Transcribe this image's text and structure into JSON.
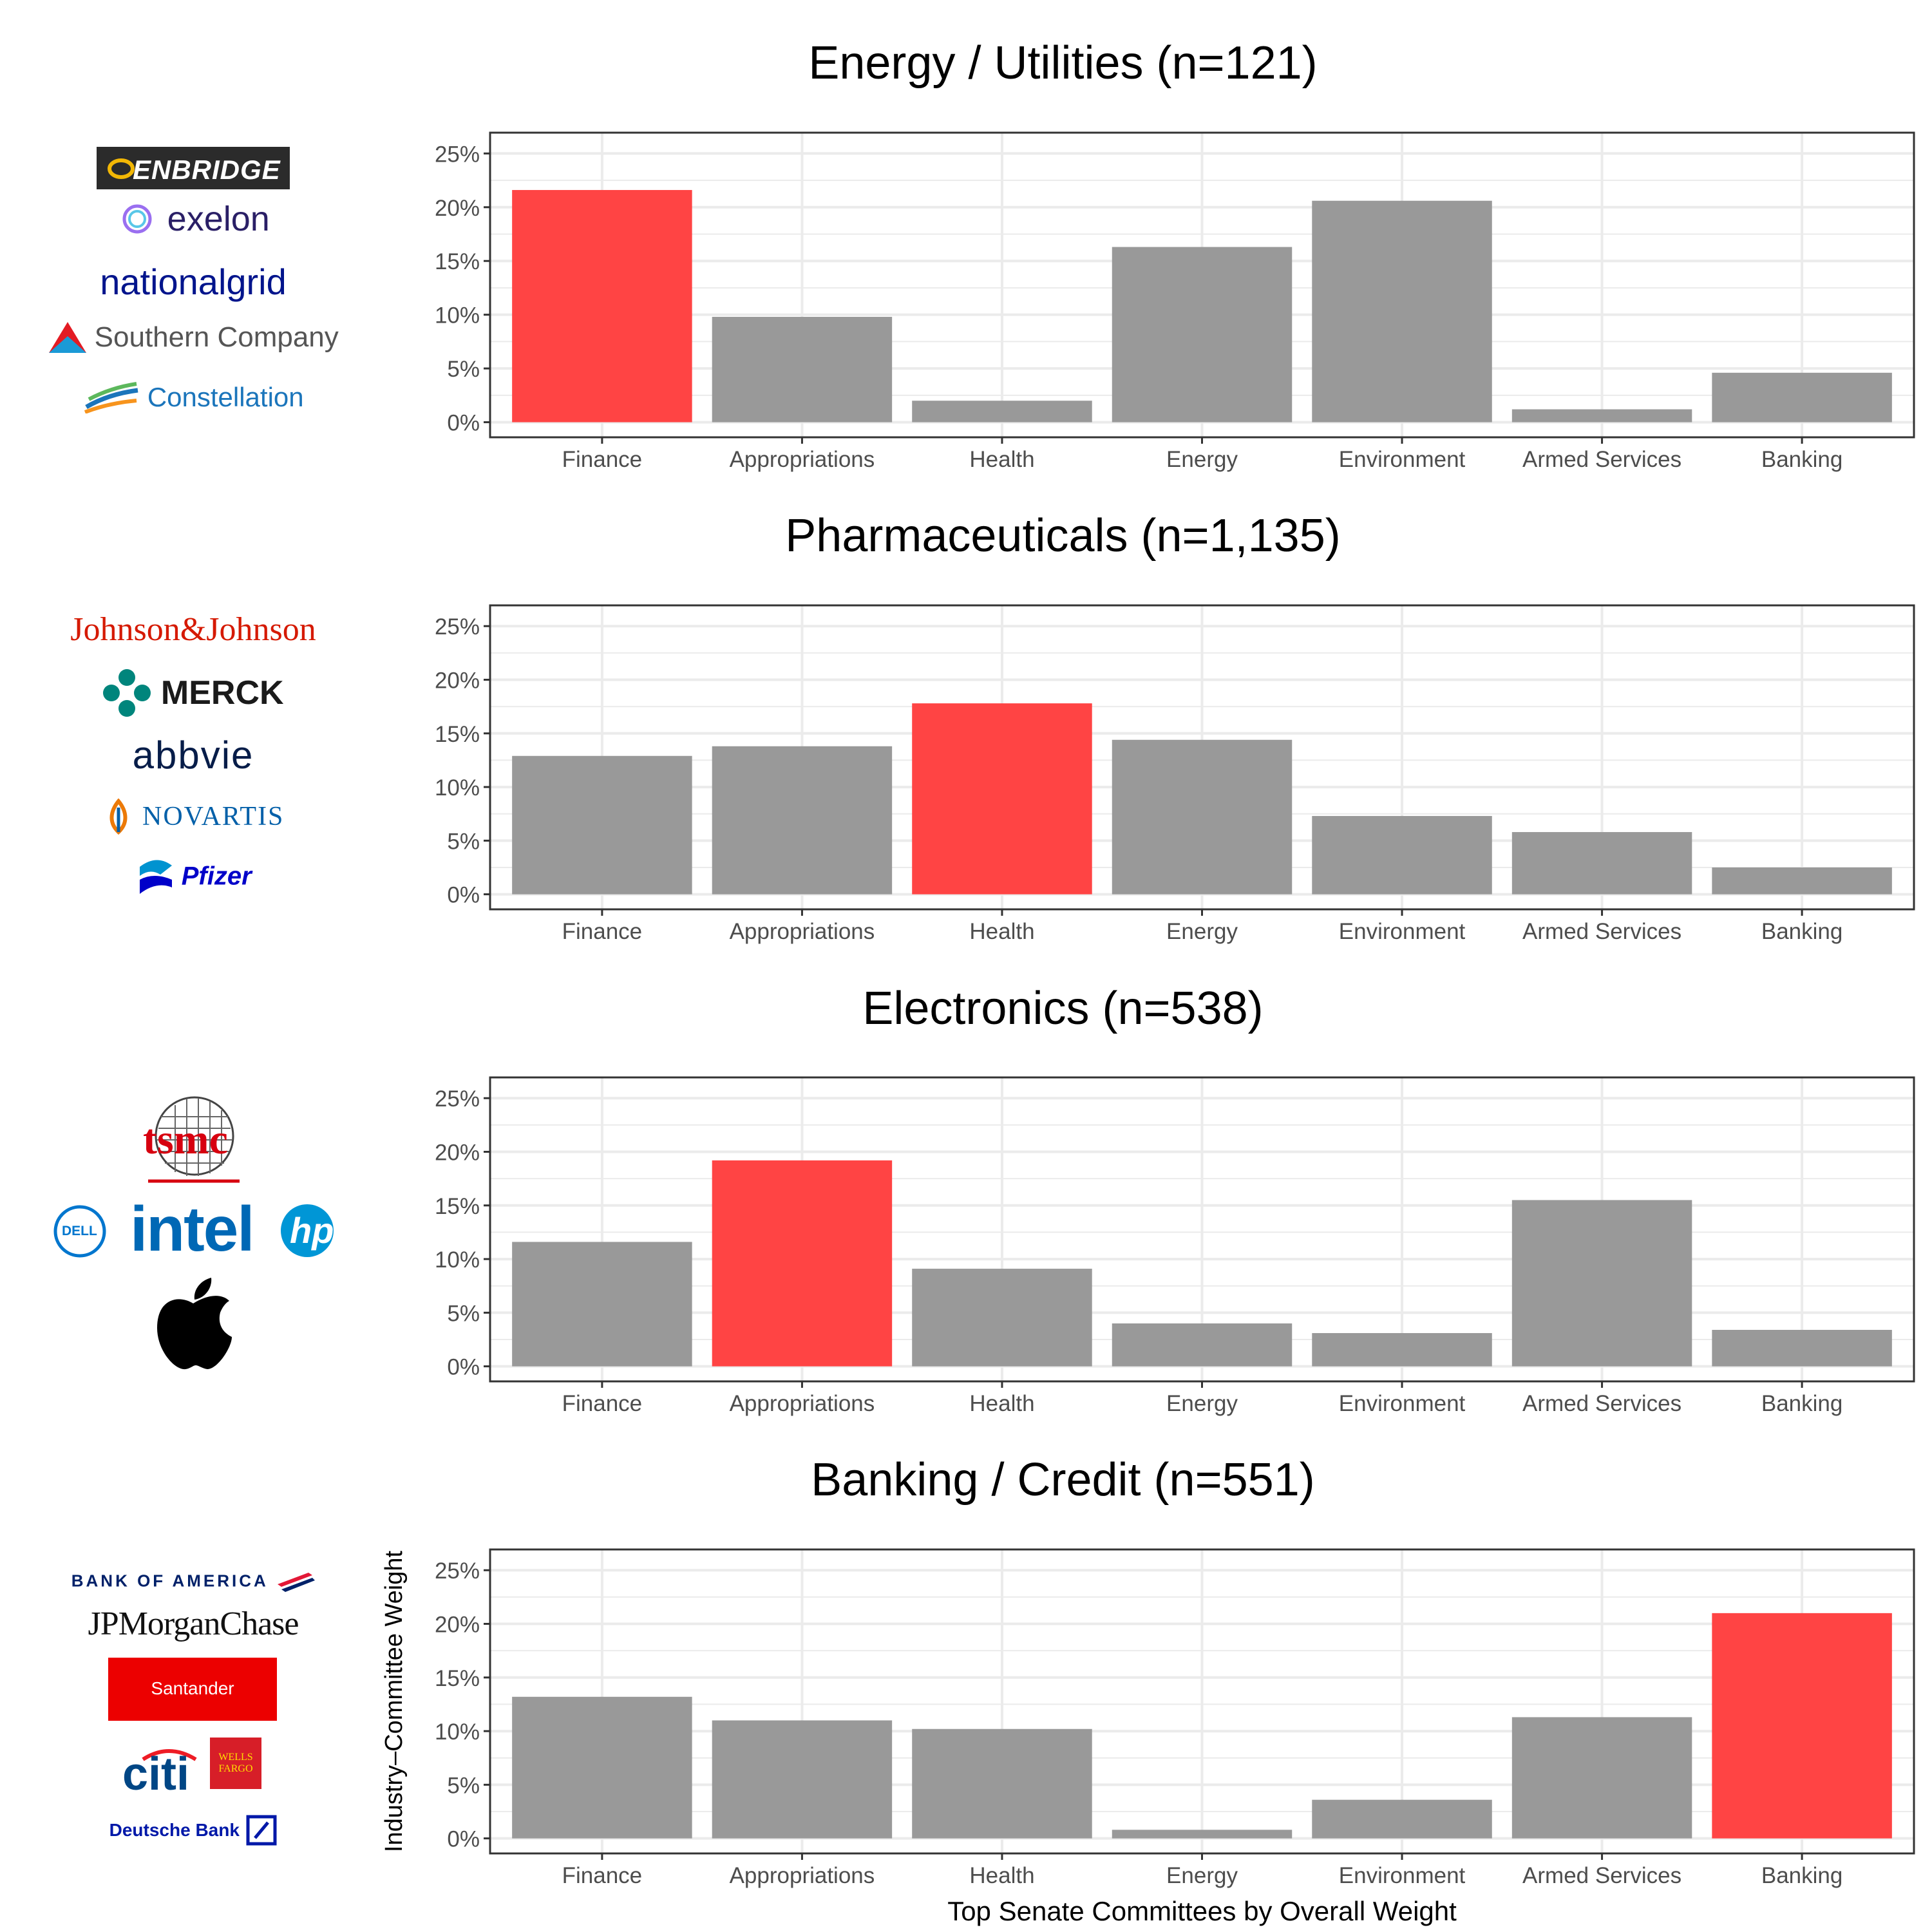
{
  "chart_data": [
    {
      "type": "bar",
      "title": "Energy / Utilities (n=121)",
      "categories": [
        "Finance",
        "Appropriations",
        "Health",
        "Energy",
        "Environment",
        "Armed Services",
        "Banking"
      ],
      "values": [
        21.6,
        9.8,
        2.0,
        16.3,
        20.6,
        1.2,
        4.6
      ],
      "highlight": "Finance",
      "ylim": [
        0,
        26
      ],
      "yticks": [
        "0%",
        "5%",
        "10%",
        "15%",
        "20%",
        "25%"
      ],
      "ytick_values": [
        0,
        5,
        10,
        15,
        20,
        25
      ],
      "xlabel": "",
      "ylabel": ""
    },
    {
      "type": "bar",
      "title": "Pharmaceuticals (n=1,135)",
      "categories": [
        "Finance",
        "Appropriations",
        "Health",
        "Energy",
        "Environment",
        "Armed Services",
        "Banking"
      ],
      "values": [
        12.9,
        13.8,
        17.8,
        14.4,
        7.3,
        5.8,
        2.5
      ],
      "highlight": "Health",
      "ylim": [
        0,
        26
      ],
      "yticks": [
        "0%",
        "5%",
        "10%",
        "15%",
        "20%",
        "25%"
      ],
      "ytick_values": [
        0,
        5,
        10,
        15,
        20,
        25
      ],
      "xlabel": "",
      "ylabel": ""
    },
    {
      "type": "bar",
      "title": "Electronics (n=538)",
      "categories": [
        "Finance",
        "Appropriations",
        "Health",
        "Energy",
        "Environment",
        "Armed Services",
        "Banking"
      ],
      "values": [
        11.6,
        19.2,
        9.1,
        4.0,
        3.1,
        15.5,
        3.4
      ],
      "highlight": "Appropriations",
      "ylim": [
        0,
        26
      ],
      "yticks": [
        "0%",
        "5%",
        "10%",
        "15%",
        "20%",
        "25%"
      ],
      "ytick_values": [
        0,
        5,
        10,
        15,
        20,
        25
      ],
      "xlabel": "",
      "ylabel": ""
    },
    {
      "type": "bar",
      "title": "Banking / Credit (n=551)",
      "categories": [
        "Finance",
        "Appropriations",
        "Health",
        "Energy",
        "Environment",
        "Armed Services",
        "Banking"
      ],
      "values": [
        13.2,
        11.0,
        10.2,
        0.8,
        3.6,
        11.3,
        21.0
      ],
      "highlight": "Banking",
      "ylim": [
        0,
        26
      ],
      "yticks": [
        "0%",
        "5%",
        "10%",
        "15%",
        "20%",
        "25%"
      ],
      "ytick_values": [
        0,
        5,
        10,
        15,
        20,
        25
      ],
      "xlabel": "Top Senate Committees by Overall Weight",
      "ylabel": "Industry–Committee Weight"
    }
  ],
  "colors": {
    "bar": "#999999",
    "highlight": "#ff4444",
    "grid": "#ebebeb",
    "axis": "#333333",
    "text": "#4d4d4d"
  },
  "logos": {
    "energy": [
      "ENBRIDGE",
      "exelon",
      "nationalgrid",
      "Southern Company",
      "Constellation"
    ],
    "pharma": [
      "Johnson&Johnson",
      "MERCK",
      "abbvie",
      "NOVARTIS",
      "Pfizer"
    ],
    "electronics": [
      "tsmc",
      "DELL",
      "intel",
      "hp",
      "apple-logo"
    ],
    "banking": [
      "BANK OF AMERICA",
      "JPMorganChase",
      "Santander",
      "citi",
      "WELLS FARGO",
      "Deutsche Bank"
    ]
  }
}
